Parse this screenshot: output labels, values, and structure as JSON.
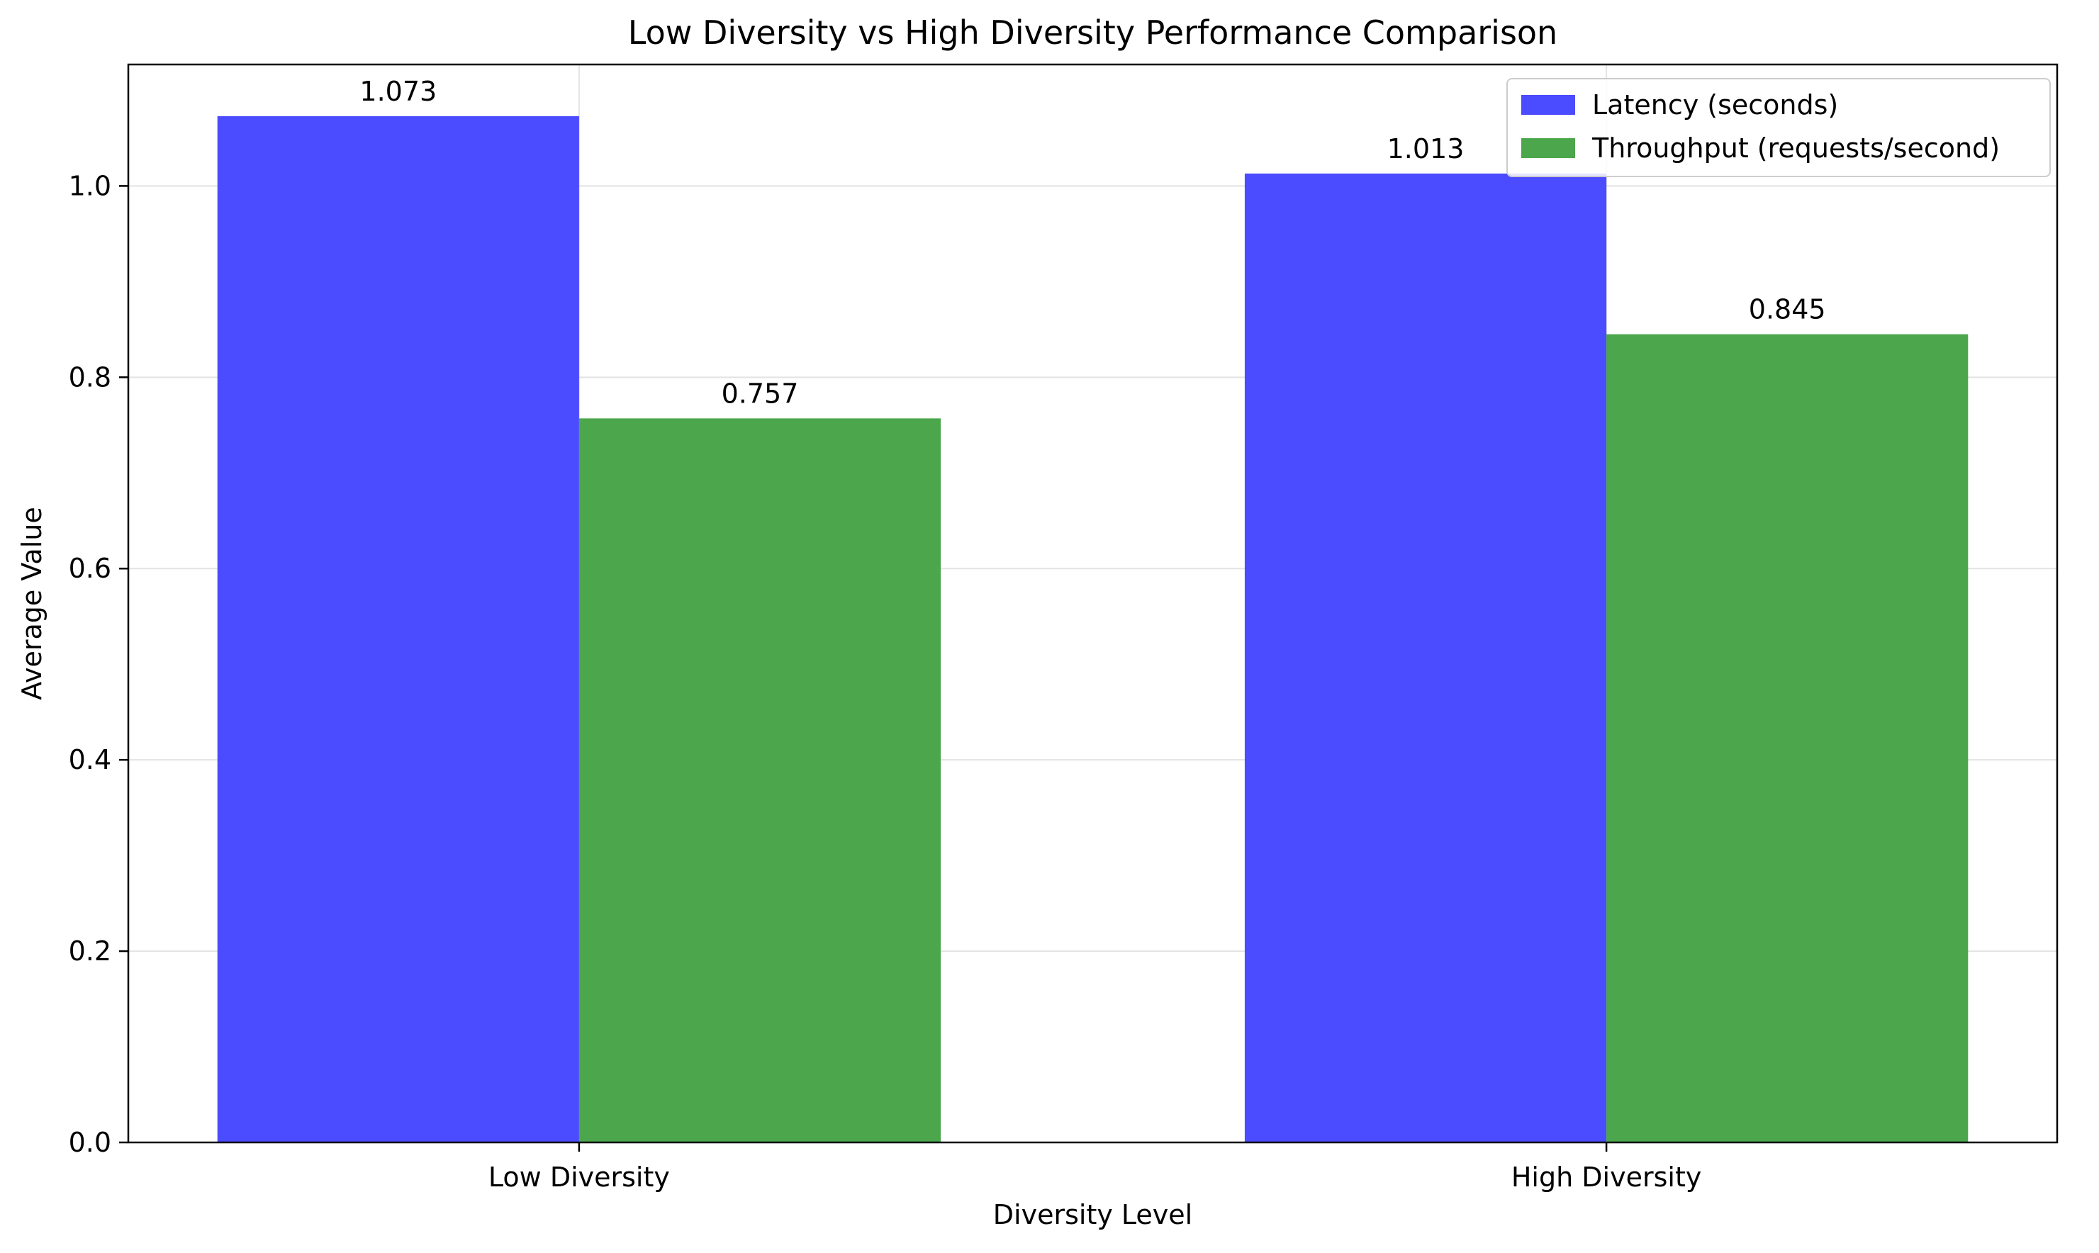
{
  "chart_data": {
    "type": "bar",
    "title": "Low Diversity vs High Diversity Performance Comparison",
    "xlabel": "Diversity Level",
    "ylabel": "Average Value",
    "categories": [
      "Low Diversity",
      "High Diversity"
    ],
    "series": [
      {
        "name": "Latency (seconds)",
        "values": [
          1.073,
          1.013
        ],
        "color": "#4b4bff"
      },
      {
        "name": "Throughput (requests/second)",
        "values": [
          0.757,
          0.845
        ],
        "color": "#4ca64c"
      }
    ],
    "value_labels": [
      [
        "1.073",
        "1.013"
      ],
      [
        "0.757",
        "0.845"
      ]
    ],
    "ylim": [
      0,
      1.127
    ],
    "yticks": [
      0.0,
      0.2,
      0.4,
      0.6,
      0.8,
      1.0
    ],
    "ytick_labels": [
      "0.0",
      "0.2",
      "0.4",
      "0.6",
      "0.8",
      "1.0"
    ],
    "grid": true,
    "legend_position": "top-right"
  }
}
